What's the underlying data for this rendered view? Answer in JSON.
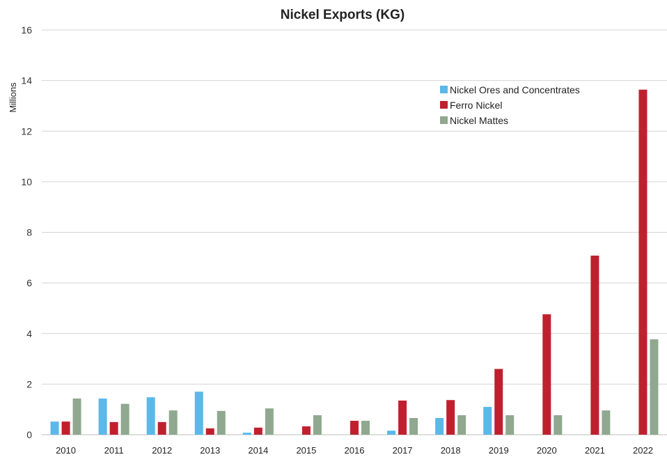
{
  "chart_data": {
    "type": "bar",
    "title": "Nickel Exports (KG)",
    "xlabel": "",
    "ylabel": "Millions",
    "ylim": [
      0,
      16
    ],
    "yticks": [
      "0",
      "2",
      "4",
      "6",
      "8",
      "10",
      "12",
      "14",
      "16"
    ],
    "grid": true,
    "legend_position": "top-right",
    "categories": [
      "2010",
      "2011",
      "2012",
      "2013",
      "2014",
      "2015",
      "2016",
      "2017",
      "2018",
      "2019",
      "2020",
      "2021",
      "2022"
    ],
    "series": [
      {
        "name": "Nickel Ores and Concentrates",
        "color": "#5bb8e8",
        "values": [
          0.52,
          1.43,
          1.48,
          1.7,
          0.08,
          0,
          0,
          0.16,
          0.66,
          1.1,
          0,
          0,
          0
        ]
      },
      {
        "name": "Ferro Nickel",
        "color": "#c0202e",
        "values": [
          0.52,
          0.5,
          0.5,
          0.25,
          0.28,
          0.33,
          0.55,
          1.35,
          1.37,
          2.6,
          4.76,
          7.08,
          13.64
        ]
      },
      {
        "name": "Nickel Mattes",
        "color": "#8fa88f",
        "values": [
          1.43,
          1.22,
          0.96,
          0.94,
          1.04,
          0.77,
          0.55,
          0.66,
          0.77,
          0.77,
          0.77,
          0.96,
          3.77
        ]
      }
    ]
  }
}
